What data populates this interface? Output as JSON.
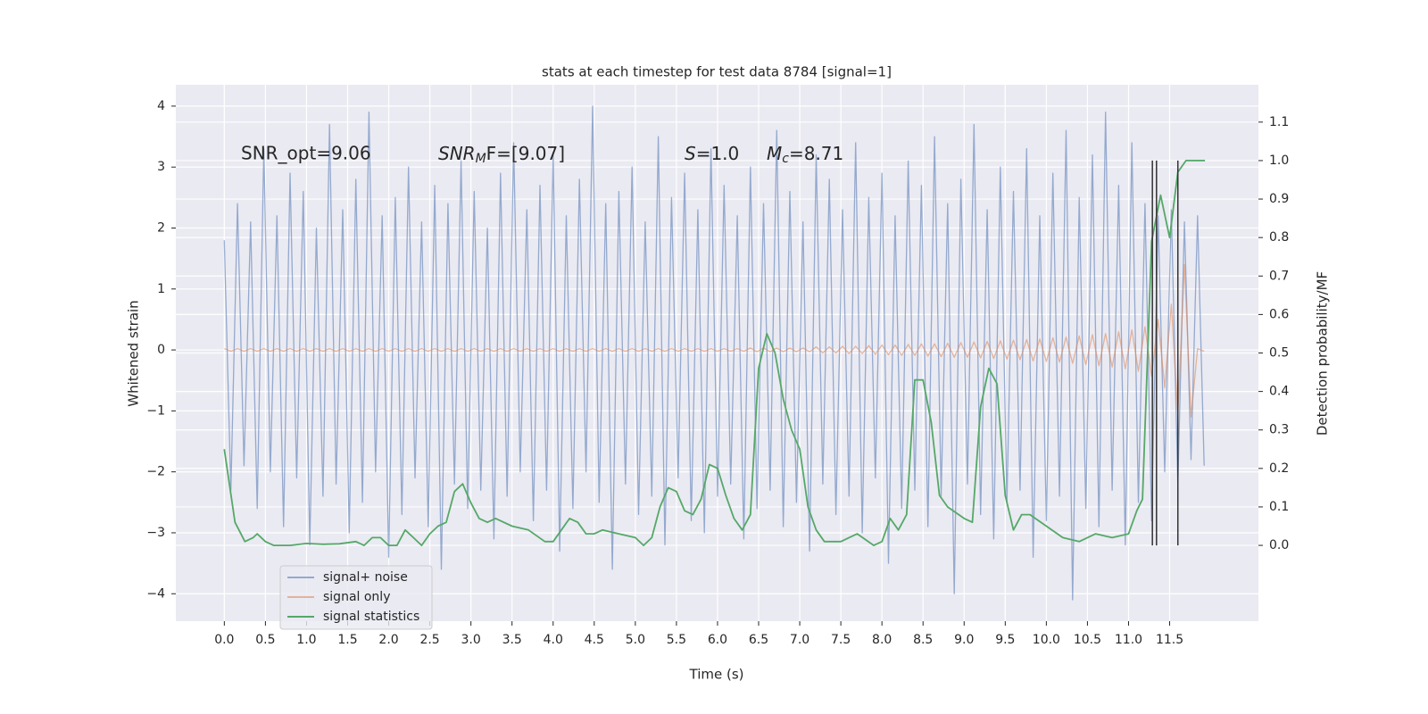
{
  "chart_data": {
    "type": "line",
    "title": "stats at each timestep for test data 8784 [signal=1]",
    "xlabel": "Time (s)",
    "ylabel": "Whitened strain",
    "y2label": "Detection probability/MF",
    "xlim": [
      -0.59,
      12.58
    ],
    "ylim": [
      -4.45,
      4.35
    ],
    "y2lim": [
      -0.197,
      1.197
    ],
    "xticks": [
      {
        "value": 0,
        "label": "0.0"
      },
      0.5,
      {
        "value": 1,
        "label": "1.0"
      },
      1.5,
      {
        "value": 2,
        "label": "2.0"
      },
      2.5,
      {
        "value": 3,
        "label": "3.0"
      },
      3.5,
      {
        "value": 4,
        "label": "4.0"
      },
      4.5,
      {
        "value": 5,
        "label": "5.0"
      },
      5.5,
      {
        "value": 6,
        "label": "6.0"
      },
      6.5,
      {
        "value": 7,
        "label": "7.0"
      },
      7.5,
      {
        "value": 8,
        "label": "8.0"
      },
      8.5,
      {
        "value": 9,
        "label": "9.0"
      },
      9.5,
      {
        "value": 10,
        "label": "10.0"
      },
      10.5,
      {
        "value": 11,
        "label": "11.0"
      },
      11.5
    ],
    "yticks": [
      {
        "value": -4,
        "label": "−4"
      },
      {
        "value": -3,
        "label": "−3"
      },
      {
        "value": -2,
        "label": "−2"
      },
      {
        "value": -1,
        "label": "−1"
      },
      0,
      1,
      2,
      3,
      4
    ],
    "y2ticks": [
      {
        "value": 0,
        "label": "0.0"
      },
      0.1,
      0.2,
      0.3,
      0.4,
      0.5,
      0.6,
      0.7,
      0.8,
      0.9,
      {
        "value": 1,
        "label": "1.0"
      },
      1.1
    ],
    "grid": true,
    "legend": "lower left",
    "annotations": [
      {
        "text": "SNR_opt=9.06"
      },
      {
        "base": "SNR",
        "sub": "M",
        "rest": "F=[9.07]"
      },
      {
        "base": "S",
        "rest": "=1.0"
      },
      {
        "base": "M",
        "sub": "c",
        "rest": "=8.71"
      }
    ],
    "vlines": {
      "x": [
        11.29,
        11.34,
        11.6
      ],
      "ymin": 0,
      "ymax": 1,
      "axis": "y2",
      "color": "#333333"
    },
    "x": [
      0,
      0.08,
      0.16,
      0.24,
      0.32,
      0.4,
      0.48,
      0.56,
      0.64,
      0.72,
      0.8,
      0.88,
      0.96,
      1.04,
      1.12,
      1.2,
      1.28,
      1.36,
      1.44,
      1.52,
      1.6,
      1.68,
      1.76,
      1.84,
      1.92,
      2,
      2.08,
      2.16,
      2.24,
      2.32,
      2.4,
      2.48,
      2.56,
      2.64,
      2.72,
      2.8,
      2.88,
      2.96,
      3.04,
      3.12,
      3.2,
      3.28,
      3.36,
      3.44,
      3.52,
      3.6,
      3.68,
      3.76,
      3.84,
      3.92,
      4,
      4.08,
      4.16,
      4.24,
      4.32,
      4.4,
      4.48,
      4.56,
      4.64,
      4.72,
      4.8,
      4.88,
      4.96,
      5.04,
      5.12,
      5.2,
      5.28,
      5.36,
      5.44,
      5.52,
      5.6,
      5.68,
      5.76,
      5.84,
      5.92,
      6,
      6.08,
      6.16,
      6.24,
      6.32,
      6.4,
      6.48,
      6.56,
      6.64,
      6.72,
      6.8,
      6.88,
      6.96,
      7.04,
      7.12,
      7.2,
      7.28,
      7.36,
      7.44,
      7.52,
      7.6,
      7.68,
      7.76,
      7.84,
      7.92,
      8,
      8.08,
      8.16,
      8.24,
      8.32,
      8.4,
      8.48,
      8.56,
      8.64,
      8.72,
      8.8,
      8.88,
      8.96,
      9.04,
      9.12,
      9.2,
      9.28,
      9.36,
      9.44,
      9.52,
      9.6,
      9.68,
      9.76,
      9.84,
      9.92,
      10,
      10.08,
      10.16,
      10.24,
      10.32,
      10.4,
      10.48,
      10.56,
      10.64,
      10.72,
      10.8,
      10.88,
      10.96,
      11.04,
      11.12,
      11.2,
      11.28,
      11.36,
      11.44,
      11.52,
      11.6,
      11.68,
      11.76,
      11.84,
      11.92
    ],
    "series": [
      {
        "name": "signal+ noise",
        "color": "#4c72b0",
        "values": [
          1.8,
          -2.3,
          2.4,
          -1.9,
          2.1,
          -2.6,
          3.3,
          -2.0,
          2.2,
          -2.9,
          2.9,
          -2.1,
          2.6,
          -3.2,
          2.0,
          -2.4,
          3.7,
          -2.2,
          2.3,
          -3.0,
          2.8,
          -2.5,
          3.9,
          -2.0,
          2.2,
          -3.4,
          2.5,
          -2.7,
          3.0,
          -2.1,
          2.1,
          -2.9,
          2.7,
          -3.6,
          2.4,
          -2.2,
          3.1,
          -2.6,
          2.6,
          -2.3,
          2.0,
          -3.1,
          2.9,
          -2.4,
          3.4,
          -2.0,
          2.3,
          -2.8,
          2.7,
          -2.3,
          3.2,
          -3.3,
          2.2,
          -2.6,
          2.8,
          -2.0,
          4.0,
          -2.5,
          2.4,
          -3.6,
          2.6,
          -2.2,
          3.0,
          -2.7,
          2.1,
          -2.4,
          3.5,
          -3.2,
          2.5,
          -2.1,
          2.9,
          -2.8,
          2.3,
          -3.0,
          3.3,
          -2.4,
          2.7,
          -2.2,
          2.2,
          -3.1,
          3.0,
          -2.6,
          2.4,
          -2.3,
          3.6,
          -2.9,
          2.6,
          -2.5,
          2.1,
          -3.3,
          3.2,
          -2.2,
          2.8,
          -2.7,
          2.3,
          -2.4,
          3.4,
          -3.0,
          2.5,
          -2.1,
          2.9,
          -3.5,
          2.2,
          -2.6,
          3.1,
          -2.3,
          2.7,
          -2.9,
          3.5,
          -2.4,
          2.4,
          -4.0,
          2.8,
          -2.2,
          3.7,
          -2.7,
          2.3,
          -3.1,
          3.0,
          -2.5,
          2.6,
          -2.3,
          3.3,
          -3.4,
          2.2,
          -2.8,
          2.9,
          -2.4,
          3.6,
          -4.1,
          2.5,
          -2.6,
          3.2,
          -2.9,
          3.9,
          -2.3,
          2.7,
          -3.2,
          3.4,
          -2.5,
          2.4,
          -2.8,
          2.2,
          -2.0,
          2.3,
          -2.2,
          2.1,
          -1.8,
          2.2,
          -1.9
        ]
      },
      {
        "name": "signal only",
        "color": "#dd8452",
        "values": [
          0.02,
          -0.02,
          0.02,
          -0.02,
          0.02,
          -0.02,
          0.02,
          -0.02,
          0.02,
          -0.02,
          0.02,
          -0.02,
          0.02,
          -0.02,
          0.02,
          -0.02,
          0.02,
          -0.02,
          0.02,
          -0.02,
          0.02,
          -0.02,
          0.02,
          -0.02,
          0.02,
          -0.02,
          0.02,
          -0.02,
          0.02,
          -0.02,
          0.02,
          -0.02,
          0.02,
          -0.02,
          0.02,
          -0.02,
          0.02,
          -0.02,
          0.02,
          -0.02,
          0.02,
          -0.02,
          0.02,
          -0.02,
          0.02,
          -0.02,
          0.02,
          -0.02,
          0.02,
          -0.02,
          0.02,
          -0.02,
          0.02,
          -0.02,
          0.02,
          -0.02,
          0.02,
          -0.02,
          0.02,
          -0.02,
          0.02,
          -0.02,
          0.02,
          -0.02,
          0.02,
          -0.02,
          0.02,
          -0.02,
          0.02,
          -0.02,
          0.02,
          -0.02,
          0.02,
          -0.02,
          0.02,
          -0.02,
          0.02,
          -0.02,
          0.02,
          -0.02,
          0.03,
          -0.03,
          0.03,
          -0.03,
          0.03,
          -0.03,
          0.03,
          -0.03,
          0.03,
          -0.03,
          0.05,
          -0.05,
          0.05,
          -0.05,
          0.06,
          -0.06,
          0.06,
          -0.06,
          0.07,
          -0.07,
          0.08,
          -0.08,
          0.08,
          -0.09,
          0.09,
          -0.09,
          0.1,
          -0.1,
          0.1,
          -0.11,
          0.11,
          -0.12,
          0.12,
          -0.12,
          0.13,
          -0.13,
          0.14,
          -0.14,
          0.15,
          -0.15,
          0.16,
          -0.16,
          0.17,
          -0.18,
          0.18,
          -0.19,
          0.2,
          -0.2,
          0.21,
          -0.22,
          0.23,
          -0.24,
          0.25,
          -0.26,
          0.27,
          -0.28,
          0.3,
          -0.31,
          0.33,
          -0.35,
          0.38,
          -0.43,
          0.5,
          -0.62,
          0.75,
          -1.05,
          1.4,
          -1.1,
          0.02,
          -0.02
        ]
      },
      {
        "name": "signal statistics",
        "color": "#55a868",
        "axis": "y2",
        "x": [
          0,
          0.13,
          0.25,
          0.35,
          0.4,
          0.5,
          0.6,
          0.8,
          1.0,
          1.2,
          1.4,
          1.6,
          1.7,
          1.8,
          1.9,
          2.0,
          2.1,
          2.2,
          2.3,
          2.4,
          2.5,
          2.6,
          2.7,
          2.8,
          2.9,
          3.0,
          3.1,
          3.2,
          3.3,
          3.5,
          3.7,
          3.9,
          4.0,
          4.1,
          4.2,
          4.3,
          4.4,
          4.5,
          4.6,
          4.8,
          5.0,
          5.1,
          5.2,
          5.3,
          5.4,
          5.5,
          5.6,
          5.7,
          5.8,
          5.9,
          6.0,
          6.1,
          6.2,
          6.3,
          6.4,
          6.5,
          6.6,
          6.7,
          6.8,
          6.9,
          7.0,
          7.1,
          7.2,
          7.3,
          7.5,
          7.7,
          7.9,
          8.0,
          8.1,
          8.2,
          8.3,
          8.4,
          8.5,
          8.6,
          8.7,
          8.8,
          9.0,
          9.1,
          9.2,
          9.3,
          9.4,
          9.5,
          9.6,
          9.7,
          9.8,
          10.0,
          10.2,
          10.4,
          10.6,
          10.8,
          11.0,
          11.1,
          11.17,
          11.28,
          11.39,
          11.5,
          11.6,
          11.7,
          11.93
        ],
        "values": [
          0.25,
          0.06,
          0.01,
          0.02,
          0.03,
          0.01,
          0,
          0,
          0.005,
          0.003,
          0.004,
          0.01,
          0,
          0.02,
          0.02,
          0,
          0,
          0.04,
          0.02,
          0,
          0.03,
          0.05,
          0.06,
          0.14,
          0.16,
          0.11,
          0.07,
          0.06,
          0.07,
          0.05,
          0.04,
          0.01,
          0.01,
          0.04,
          0.07,
          0.06,
          0.03,
          0.03,
          0.04,
          0.03,
          0.02,
          0,
          0.02,
          0.1,
          0.15,
          0.14,
          0.09,
          0.08,
          0.12,
          0.21,
          0.2,
          0.13,
          0.07,
          0.04,
          0.08,
          0.46,
          0.55,
          0.5,
          0.38,
          0.3,
          0.25,
          0.1,
          0.04,
          0.01,
          0.01,
          0.03,
          0,
          0.01,
          0.07,
          0.04,
          0.08,
          0.43,
          0.43,
          0.32,
          0.13,
          0.1,
          0.07,
          0.06,
          0.36,
          0.46,
          0.42,
          0.13,
          0.04,
          0.08,
          0.08,
          0.05,
          0.02,
          0.01,
          0.03,
          0.02,
          0.03,
          0.09,
          0.12,
          0.79,
          0.91,
          0.8,
          0.97,
          1,
          1
        ]
      }
    ]
  }
}
